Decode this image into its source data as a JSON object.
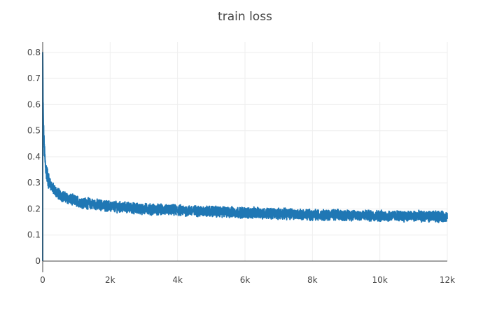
{
  "chart_data": {
    "type": "line",
    "title": "train loss",
    "xlabel": "",
    "ylabel": "",
    "xlim": [
      0,
      12000
    ],
    "ylim": [
      0,
      0.84
    ],
    "grid": true,
    "legend": "none",
    "x_ticks": [
      {
        "value": 0,
        "label": "0"
      },
      {
        "value": 2000,
        "label": "2k"
      },
      {
        "value": 4000,
        "label": "4k"
      },
      {
        "value": 6000,
        "label": "6k"
      },
      {
        "value": 8000,
        "label": "8k"
      },
      {
        "value": 10000,
        "label": "10k"
      },
      {
        "value": 12000,
        "label": "12k"
      }
    ],
    "y_ticks": [
      {
        "value": 0,
        "label": "0"
      },
      {
        "value": 0.1,
        "label": "0.1"
      },
      {
        "value": 0.2,
        "label": "0.2"
      },
      {
        "value": 0.3,
        "label": "0.3"
      },
      {
        "value": 0.4,
        "label": "0.4"
      },
      {
        "value": 0.5,
        "label": "0.5"
      },
      {
        "value": 0.6,
        "label": "0.6"
      },
      {
        "value": 0.7,
        "label": "0.7"
      },
      {
        "value": 0.8,
        "label": "0.8"
      }
    ],
    "series": [
      {
        "color": "#1f77b4",
        "x": [
          0,
          10,
          20,
          40,
          60,
          80,
          100,
          150,
          200,
          250,
          300,
          400,
          500,
          600,
          800,
          1000,
          1200,
          1500,
          2000,
          2500,
          3000,
          3500,
          4000,
          4500,
          5000,
          5500,
          6000,
          6500,
          7000,
          7500,
          8000,
          8500,
          9000,
          9500,
          10000,
          10500,
          11000,
          11500,
          12000
        ],
        "y": [
          0.8,
          0.62,
          0.52,
          0.45,
          0.4,
          0.37,
          0.35,
          0.32,
          0.3,
          0.29,
          0.28,
          0.265,
          0.255,
          0.248,
          0.238,
          0.23,
          0.224,
          0.218,
          0.21,
          0.205,
          0.2,
          0.197,
          0.195,
          0.192,
          0.19,
          0.188,
          0.186,
          0.184,
          0.182,
          0.18,
          0.178,
          0.177,
          0.176,
          0.175,
          0.174,
          0.173,
          0.172,
          0.171,
          0.17
        ],
        "noise_amplitude": 0.018
      }
    ]
  }
}
